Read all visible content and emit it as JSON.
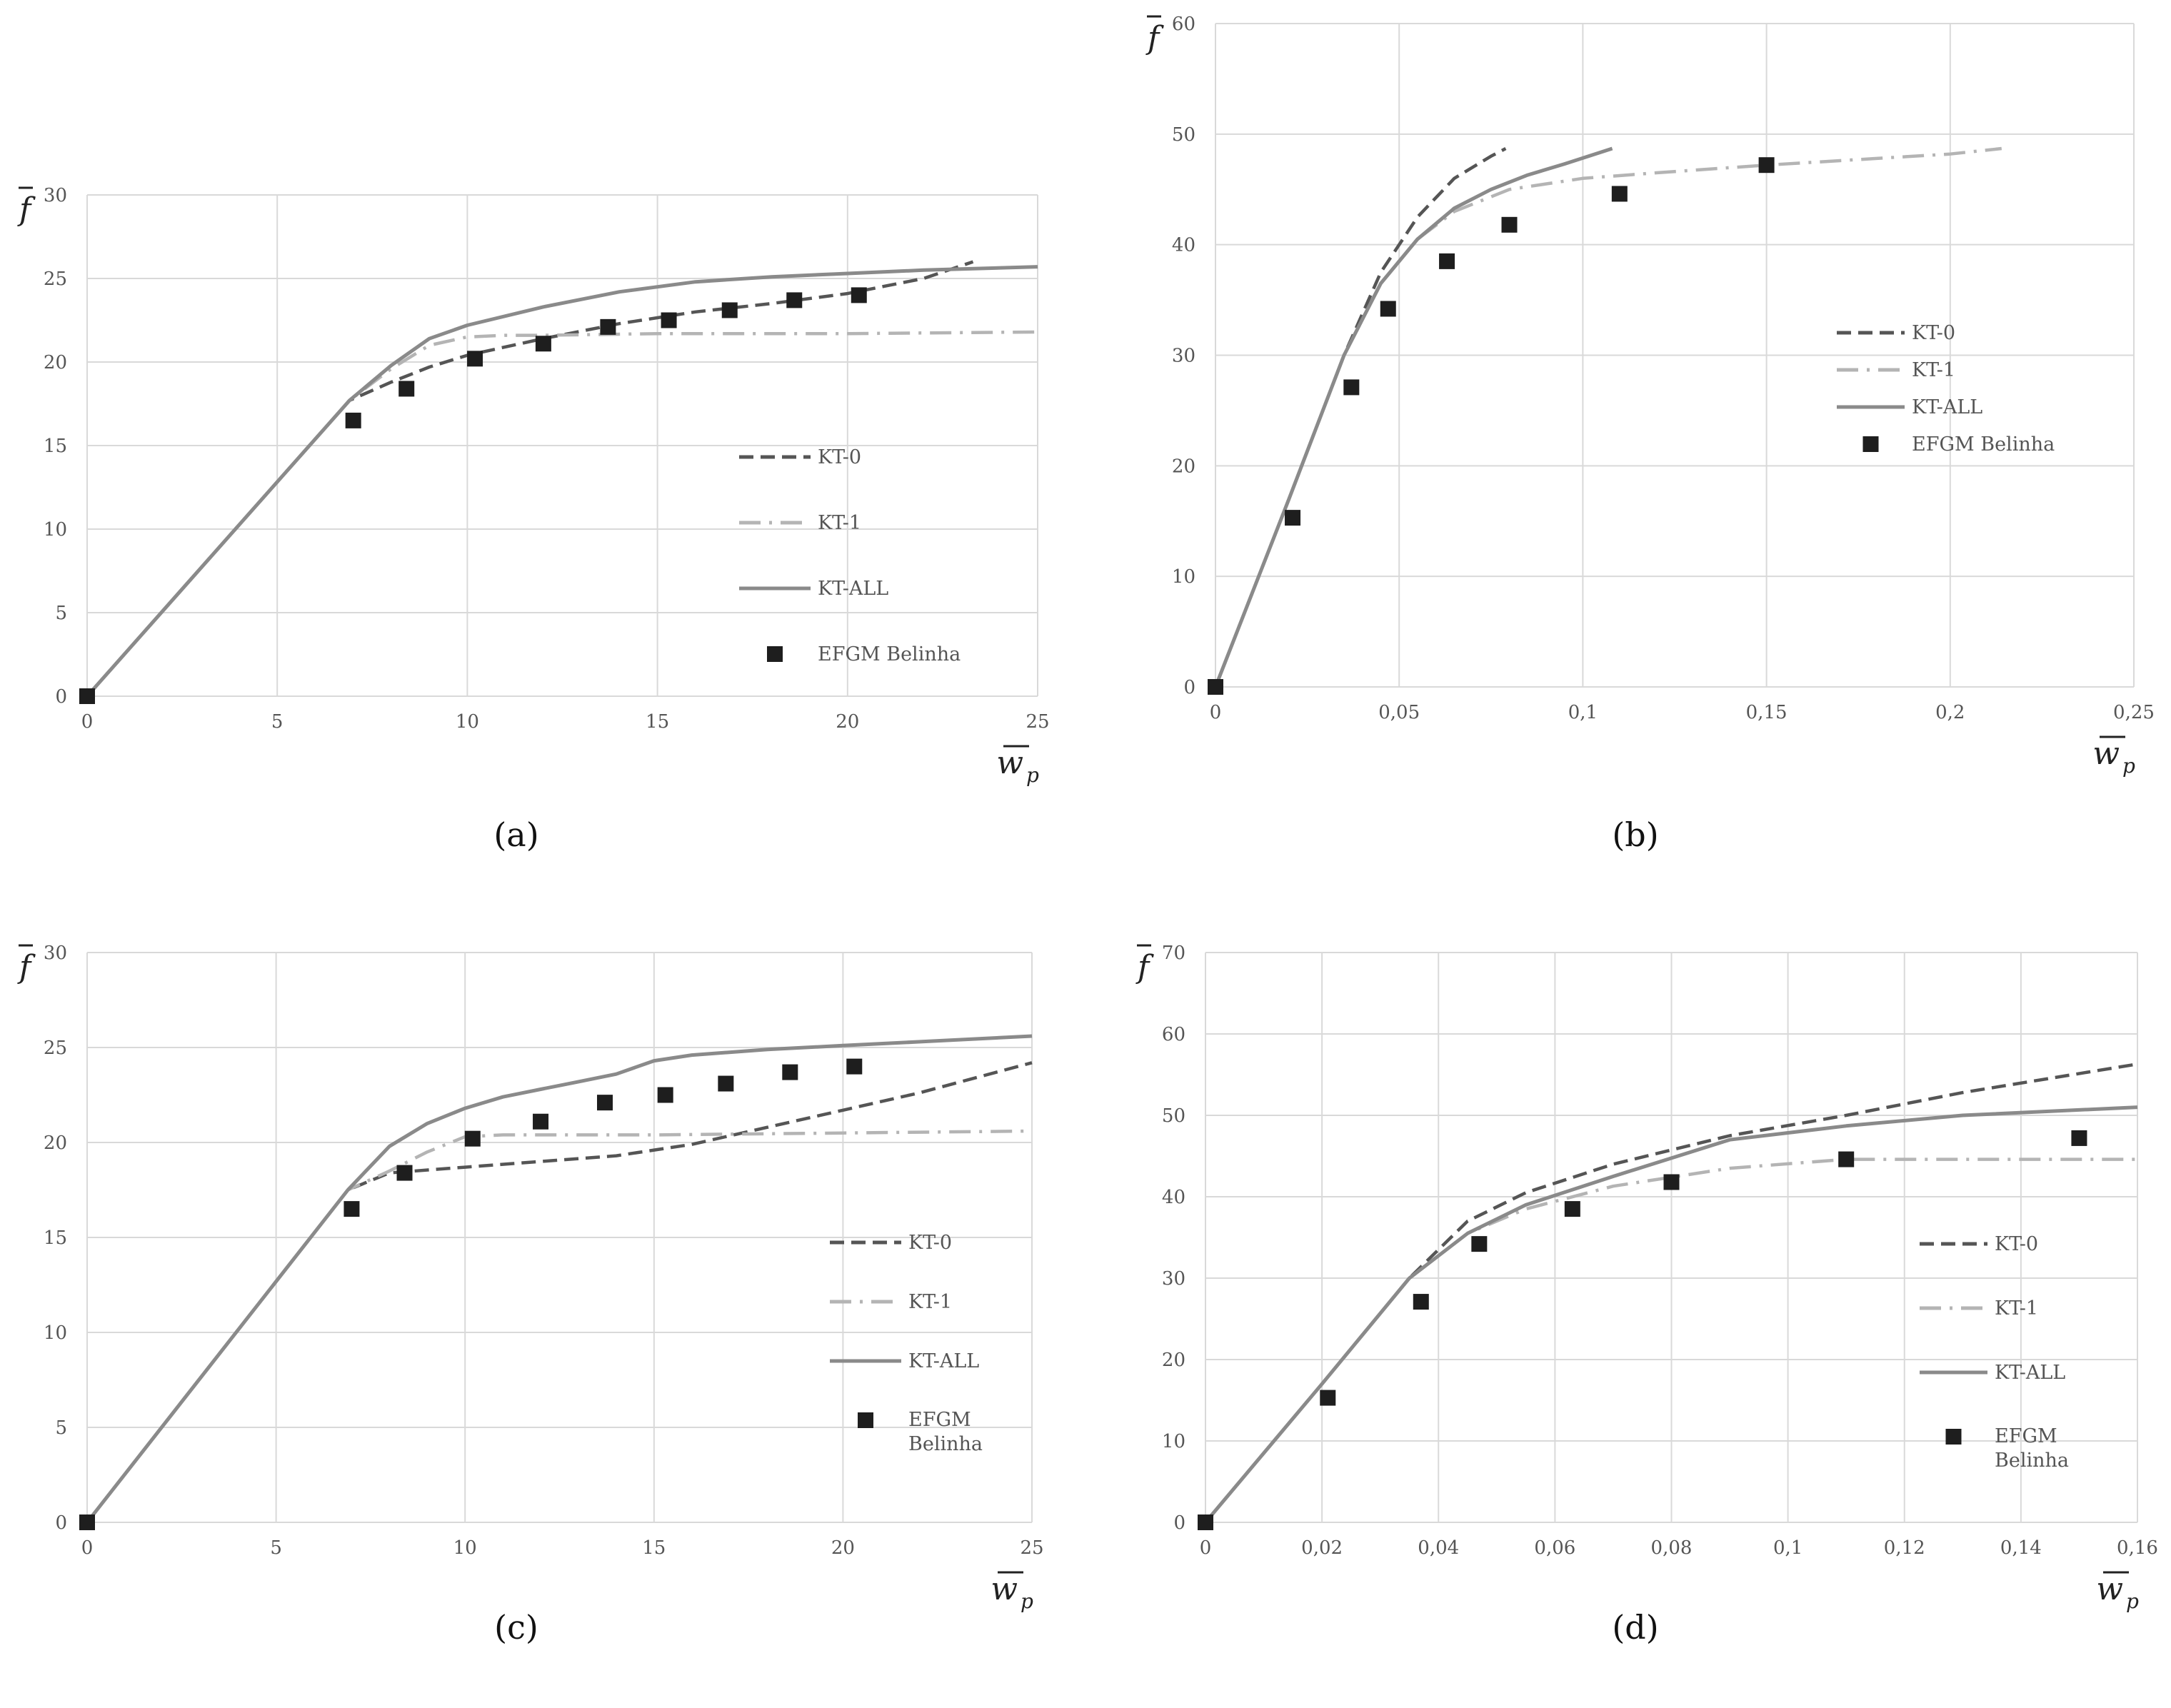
{
  "chart_data": [
    {
      "type": "line",
      "panel_label": "(a)",
      "xlabel": "w",
      "xlabel_sub": "p",
      "ylabel": "f",
      "xlim": [
        0,
        25
      ],
      "ylim": [
        0,
        30
      ],
      "x_ticks": [
        0,
        5,
        10,
        15,
        20,
        25
      ],
      "x_tick_labels": [
        "0",
        "5",
        "10",
        "15",
        "20",
        "25"
      ],
      "y_ticks": [
        0,
        5,
        10,
        15,
        20,
        25,
        30
      ],
      "y_tick_labels": [
        "0",
        "5",
        "10",
        "15",
        "20",
        "25",
        "30"
      ],
      "grid": true,
      "legend_position": "right",
      "series": [
        {
          "name": "KT-0",
          "style": "dashed",
          "color": "#555555",
          "x": [
            0,
            6.9,
            8,
            9,
            10,
            12,
            14,
            16,
            18,
            20,
            22,
            23.3
          ],
          "y": [
            0,
            17.7,
            18.8,
            19.7,
            20.4,
            21.4,
            22.3,
            23,
            23.5,
            24.1,
            25,
            26
          ]
        },
        {
          "name": "KT-1",
          "style": "dashdot",
          "color": "#b4b4b4",
          "x": [
            0,
            6.9,
            8,
            9,
            10,
            11,
            12,
            15,
            20,
            25
          ],
          "y": [
            0,
            17.7,
            19.6,
            21,
            21.5,
            21.6,
            21.6,
            21.7,
            21.7,
            21.8
          ]
        },
        {
          "name": "KT-ALL",
          "style": "solid",
          "color": "#8a8a8a",
          "x": [
            0,
            6.9,
            8,
            9,
            10,
            12,
            14,
            16,
            18,
            20,
            22,
            25
          ],
          "y": [
            0,
            17.7,
            19.8,
            21.4,
            22.2,
            23.3,
            24.2,
            24.8,
            25.1,
            25.3,
            25.5,
            25.7
          ]
        },
        {
          "name": "EFGM Belinha",
          "style": "markers",
          "color": "#1e1e1e",
          "x": [
            0,
            7,
            8.4,
            10.2,
            12,
            13.7,
            15.3,
            16.9,
            18.6,
            20.3
          ],
          "y": [
            0,
            16.5,
            18.4,
            20.2,
            21.1,
            22.1,
            22.5,
            23.1,
            23.7,
            24
          ]
        }
      ]
    },
    {
      "type": "line",
      "panel_label": "(b)",
      "xlabel": "w",
      "xlabel_sub": "p",
      "ylabel": "f",
      "xlim": [
        0,
        0.25
      ],
      "ylim": [
        0,
        60
      ],
      "x_ticks": [
        0,
        0.05,
        0.1,
        0.15,
        0.2,
        0.25
      ],
      "x_tick_labels": [
        "0",
        "0,05",
        "0,1",
        "0,15",
        "0,2",
        "0,25"
      ],
      "y_ticks": [
        0,
        10,
        20,
        30,
        40,
        50,
        60
      ],
      "y_tick_labels": [
        "0",
        "10",
        "20",
        "30",
        "40",
        "50",
        "60"
      ],
      "grid": true,
      "legend_position": "right",
      "series": [
        {
          "name": "KT-0",
          "style": "dashed",
          "color": "#555555",
          "x": [
            0,
            0.02,
            0.035,
            0.045,
            0.055,
            0.065,
            0.075,
            0.079
          ],
          "y": [
            0,
            17,
            30,
            37.5,
            42.5,
            46,
            48,
            48.7
          ]
        },
        {
          "name": "KT-1",
          "style": "dashdot",
          "color": "#b4b4b4",
          "x": [
            0,
            0.02,
            0.035,
            0.045,
            0.055,
            0.065,
            0.08,
            0.1,
            0.12,
            0.15,
            0.18,
            0.2,
            0.214
          ],
          "y": [
            0,
            17,
            30,
            36.5,
            40.5,
            43,
            45,
            46,
            46.5,
            47.2,
            47.8,
            48.2,
            48.7
          ]
        },
        {
          "name": "KT-ALL",
          "style": "solid",
          "color": "#8a8a8a",
          "x": [
            0,
            0.02,
            0.035,
            0.045,
            0.055,
            0.065,
            0.075,
            0.085,
            0.095,
            0.108
          ],
          "y": [
            0,
            17,
            30,
            36.5,
            40.5,
            43.3,
            45,
            46.3,
            47.3,
            48.7
          ]
        },
        {
          "name": "EFGM Belinha",
          "style": "markers",
          "color": "#1e1e1e",
          "x": [
            0,
            0.021,
            0.037,
            0.047,
            0.063,
            0.08,
            0.11,
            0.15
          ],
          "y": [
            0,
            15.3,
            27.1,
            34.2,
            38.5,
            41.8,
            44.6,
            47.2
          ]
        }
      ]
    },
    {
      "type": "line",
      "panel_label": "(c)",
      "xlabel": "w",
      "xlabel_sub": "p",
      "ylabel": "f",
      "xlim": [
        0,
        25
      ],
      "ylim": [
        0,
        30
      ],
      "x_ticks": [
        0,
        5,
        10,
        15,
        20,
        25
      ],
      "x_tick_labels": [
        "0",
        "5",
        "10",
        "15",
        "20",
        "25"
      ],
      "y_ticks": [
        0,
        5,
        10,
        15,
        20,
        25,
        30
      ],
      "y_tick_labels": [
        "0",
        "5",
        "10",
        "15",
        "20",
        "25",
        "30"
      ],
      "grid": true,
      "legend_position": "right",
      "series": [
        {
          "name": "KT-0",
          "style": "dashed",
          "color": "#555555",
          "x": [
            0,
            6.9,
            8,
            10,
            12,
            14,
            16,
            18,
            20,
            22,
            25
          ],
          "y": [
            0,
            17.5,
            18.4,
            18.7,
            19,
            19.3,
            19.9,
            20.8,
            21.7,
            22.6,
            24.2
          ]
        },
        {
          "name": "KT-1",
          "style": "dashdot",
          "color": "#b4b4b4",
          "x": [
            0,
            6.9,
            8,
            9,
            10,
            11,
            15,
            20,
            25
          ],
          "y": [
            0,
            17.5,
            18.5,
            19.5,
            20.3,
            20.4,
            20.4,
            20.5,
            20.6
          ]
        },
        {
          "name": "KT-ALL",
          "style": "solid",
          "color": "#8a8a8a",
          "x": [
            0,
            6.9,
            8,
            9,
            10,
            11,
            12,
            13,
            14,
            15,
            16,
            18,
            20,
            22,
            25
          ],
          "y": [
            0,
            17.5,
            19.8,
            21,
            21.8,
            22.4,
            22.8,
            23.2,
            23.6,
            24.3,
            24.6,
            24.9,
            25.1,
            25.3,
            25.6
          ]
        },
        {
          "name": "EFGM Belinha",
          "style": "markers",
          "color": "#1e1e1e",
          "x": [
            0,
            7,
            8.4,
            10.2,
            12,
            13.7,
            15.3,
            16.9,
            18.6,
            20.3
          ],
          "y": [
            0,
            16.5,
            18.4,
            20.2,
            21.1,
            22.1,
            22.5,
            23.1,
            23.7,
            24
          ]
        }
      ]
    },
    {
      "type": "line",
      "panel_label": "(d)",
      "xlabel": "w",
      "xlabel_sub": "p",
      "ylabel": "f",
      "xlim": [
        0,
        0.16
      ],
      "ylim": [
        0,
        70
      ],
      "x_ticks": [
        0,
        0.02,
        0.04,
        0.06,
        0.08,
        0.1,
        0.12,
        0.14,
        0.16
      ],
      "x_tick_labels": [
        "0",
        "0,02",
        "0,04",
        "0,06",
        "0,08",
        "0,1",
        "0,12",
        "0,14",
        "0,16"
      ],
      "y_ticks": [
        0,
        10,
        20,
        30,
        40,
        50,
        60,
        70
      ],
      "y_tick_labels": [
        "0",
        "10",
        "20",
        "30",
        "40",
        "50",
        "60",
        "70"
      ],
      "grid": true,
      "legend_position": "right",
      "series": [
        {
          "name": "KT-0",
          "style": "dashed",
          "color": "#555555",
          "x": [
            0,
            0.02,
            0.035,
            0.045,
            0.055,
            0.07,
            0.09,
            0.11,
            0.13,
            0.16
          ],
          "y": [
            0,
            17,
            30,
            37,
            40.5,
            44,
            47.5,
            50,
            52.8,
            56.3
          ]
        },
        {
          "name": "KT-1",
          "style": "dashdot",
          "color": "#b4b4b4",
          "x": [
            0,
            0.02,
            0.035,
            0.045,
            0.055,
            0.07,
            0.09,
            0.11,
            0.13,
            0.16
          ],
          "y": [
            0,
            17,
            30,
            35.5,
            38.5,
            41.3,
            43.5,
            44.6,
            44.6,
            44.6
          ]
        },
        {
          "name": "KT-ALL",
          "style": "solid",
          "color": "#8a8a8a",
          "x": [
            0,
            0.02,
            0.035,
            0.045,
            0.055,
            0.07,
            0.09,
            0.11,
            0.13,
            0.16
          ],
          "y": [
            0,
            17,
            30,
            35.5,
            39,
            42.5,
            47,
            48.7,
            50,
            51
          ]
        },
        {
          "name": "EFGM Belinha",
          "style": "markers",
          "color": "#1e1e1e",
          "x": [
            0,
            0.021,
            0.037,
            0.047,
            0.063,
            0.08,
            0.11,
            0.15
          ],
          "y": [
            0,
            15.3,
            27.1,
            34.2,
            38.5,
            41.8,
            44.6,
            47.2
          ]
        }
      ]
    }
  ]
}
